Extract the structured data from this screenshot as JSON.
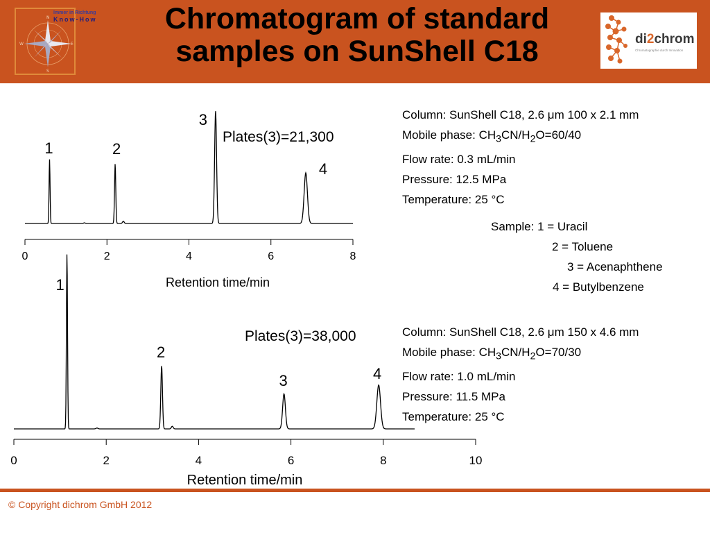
{
  "header": {
    "title_line1": "Chromatogram of standard",
    "title_line2": "samples on SunShell C18",
    "left_logo": {
      "caption1": "Immer in Richtung",
      "caption2": "Know-How"
    },
    "right_logo": {
      "brand_a": "di",
      "brand_b": "2",
      "brand_c": "chrom",
      "tagline": "Chromatographie durch Innovation"
    },
    "bg_color": "#c9531f"
  },
  "chart_data": [
    {
      "type": "line",
      "xlabel": "Retention time/min",
      "ylabel": "",
      "xlim": [
        0,
        8
      ],
      "xticks": [
        0,
        2,
        4,
        6,
        8
      ],
      "plates_label": "Plates(3)=21,300",
      "peaks": [
        {
          "label": "1",
          "t": 0.6,
          "height": 0.57,
          "width": 0.012
        },
        {
          "label": "2",
          "t": 2.2,
          "height": 0.53,
          "width": 0.015
        },
        {
          "label": "3",
          "t": 4.65,
          "height": 1.0,
          "width": 0.024
        },
        {
          "label": "4",
          "t": 6.85,
          "height": 0.45,
          "width": 0.04
        }
      ],
      "minor_peaks": [
        {
          "t": 2.4,
          "height": 0.02,
          "width": 0.02
        },
        {
          "t": 1.45,
          "height": 0.006,
          "width": 0.02
        }
      ]
    },
    {
      "type": "line",
      "xlabel": "Retention time/min",
      "ylabel": "",
      "xlim": [
        0,
        10
      ],
      "xticks": [
        0,
        2,
        4,
        6,
        8,
        10
      ],
      "plates_label": "Plates(3)=38,000",
      "peaks": [
        {
          "label": "1",
          "t": 1.15,
          "height": 1.0,
          "width": 0.012
        },
        {
          "label": "2",
          "t": 3.2,
          "height": 0.36,
          "width": 0.018
        },
        {
          "label": "3",
          "t": 5.85,
          "height": 0.2,
          "width": 0.03
        },
        {
          "label": "4",
          "t": 7.9,
          "height": 0.25,
          "width": 0.04
        }
      ],
      "minor_peaks": [
        {
          "t": 3.43,
          "height": 0.015,
          "width": 0.02
        },
        {
          "t": 1.8,
          "height": 0.005,
          "width": 0.02
        }
      ]
    }
  ],
  "conditions1": {
    "column": "Column: SunShell C18, 2.6 μm  100 x 2.1 mm",
    "mobile_prefix": "Mobile phase: CH",
    "mobile_sub1": "3",
    "mobile_mid": "CN/H",
    "mobile_sub2": "2",
    "mobile_suffix": "O=60/40",
    "flow": "Flow rate: 0.3 mL/min",
    "pressure": "Pressure: 12.5 MPa",
    "temperature": "Temperature: 25 °C"
  },
  "sample": {
    "line1": "Sample:  1 = Uracil",
    "line2": "2 = Toluene",
    "line3": "3 = Acenaphthene",
    "line4": "4 = Butylbenzene"
  },
  "conditions2": {
    "column": "Column: SunShell C18, 2.6 μm  150 x 4.6 mm",
    "mobile_prefix": "Mobile phase: CH",
    "mobile_sub1": "3",
    "mobile_mid": "CN/H",
    "mobile_sub2": "2",
    "mobile_suffix": "O=70/30",
    "flow": "Flow rate:  1.0 mL/min",
    "pressure": "Pressure: 11.5 MPa",
    "temperature": "Temperature: 25 °C"
  },
  "footer": {
    "copyright": "© Copyright dichrom GmbH 2012"
  }
}
